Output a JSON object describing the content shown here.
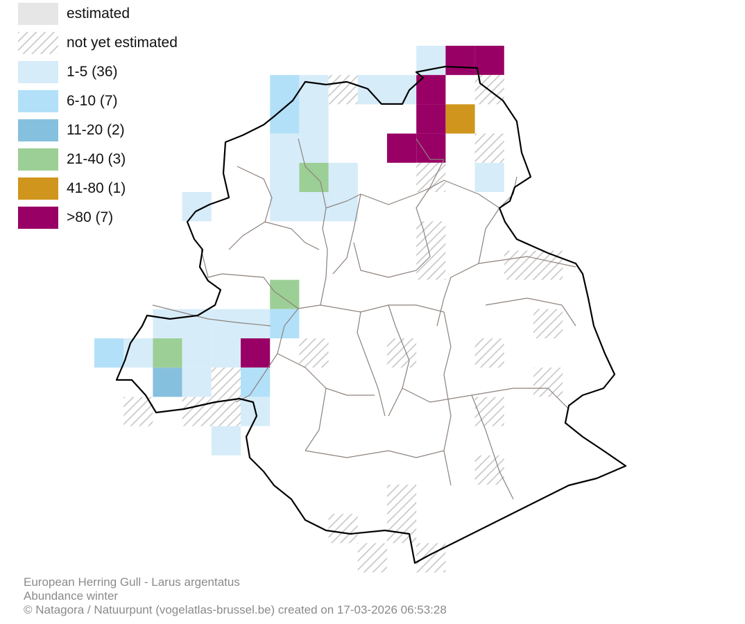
{
  "legend": {
    "items": [
      {
        "label": "estimated",
        "pattern": "solid",
        "color": "#e6e6e6"
      },
      {
        "label": "not yet estimated",
        "pattern": "hatch",
        "color": "#c8c8c8"
      },
      {
        "label": "1-5 (36)",
        "pattern": "solid",
        "color": "#d6ecf9"
      },
      {
        "label": "6-10 (7)",
        "pattern": "solid",
        "color": "#b2e0f9"
      },
      {
        "label": "11-20 (2)",
        "pattern": "solid",
        "color": "#86c0df"
      },
      {
        "label": "21-40 (3)",
        "pattern": "solid",
        "color": "#9ccf95"
      },
      {
        "label": "41-80 (1)",
        "pattern": "solid",
        "color": "#d0951c"
      },
      {
        "label": ">80 (7)",
        "pattern": "solid",
        "color": "#990066"
      }
    ]
  },
  "footer": {
    "species": "European Herring Gull - Larus argentatus",
    "subtitle": "Abundance winter",
    "credit": "© Natagora / Natuurpunt (vogelatlas-brussel.be) created on 17-03-2026 06:53:28"
  },
  "map": {
    "colors": {
      "boundary": "#000000",
      "municipality_lines": "#8c817b",
      "hatch": "#c8c8c8"
    }
  }
}
